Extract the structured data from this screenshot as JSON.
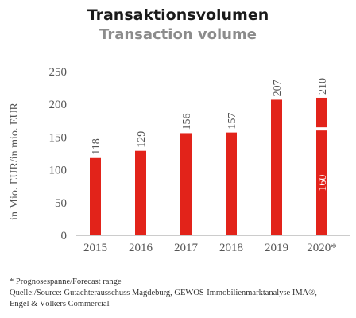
{
  "header": {
    "title": "Transaktionsvolumen",
    "subtitle": "Transaction volume"
  },
  "chart_data": {
    "type": "bar",
    "categories": [
      "2015",
      "2016",
      "2017",
      "2018",
      "2019",
      "2020*"
    ],
    "values": [
      118,
      129,
      156,
      157,
      207,
      210
    ],
    "range_low": {
      "category": "2020*",
      "value": 160
    },
    "ylabel": "in Mio. EUR/in mio. EUR",
    "xlabel": "",
    "ylim": [
      0,
      250
    ],
    "yticks": [
      0,
      50,
      100,
      150,
      200,
      250
    ],
    "grid": false,
    "bar_color": "#e2231a"
  },
  "footer": {
    "footnote": "* Prognosespanne/Forecast range",
    "source_line1": "Quelle:/Source: Gutachterausschuss Magdeburg, GEWOS-Immobilienmarktanalyse IMA®,",
    "source_line2": "Engel & Völkers Commercial"
  }
}
